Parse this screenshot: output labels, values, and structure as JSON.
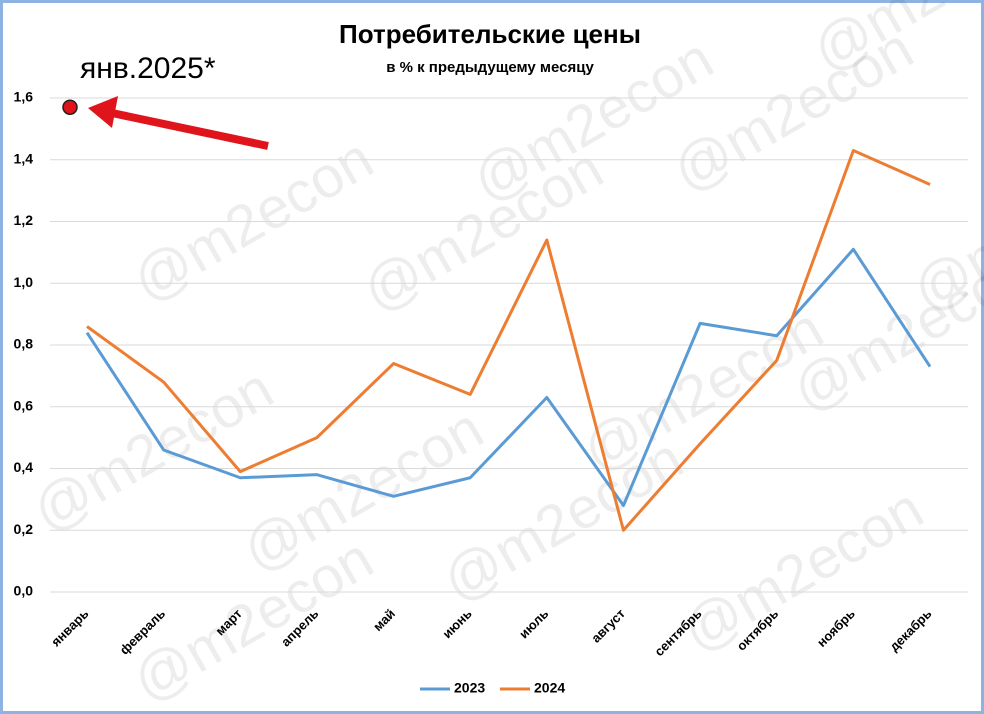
{
  "chart_data": {
    "type": "line",
    "title": "Потребительские цены",
    "subtitle": "в % к предыдущему месяцу",
    "categories": [
      "январь",
      "февраль",
      "март",
      "апрель",
      "май",
      "июнь",
      "июль",
      "август",
      "сентябрь",
      "октябрь",
      "ноябрь",
      "декабрь"
    ],
    "series": [
      {
        "name": "2023",
        "color": "#5b9bd5",
        "values": [
          0.84,
          0.46,
          0.37,
          0.38,
          0.31,
          0.37,
          0.63,
          0.28,
          0.87,
          0.83,
          1.11,
          0.73
        ]
      },
      {
        "name": "2024",
        "color": "#ed7d31",
        "values": [
          0.86,
          0.68,
          0.39,
          0.5,
          0.74,
          0.64,
          1.14,
          0.2,
          0.48,
          0.75,
          1.43,
          1.32
        ]
      }
    ],
    "annotation": {
      "text": "янв.2025*",
      "value": 1.57,
      "color": "#e0141b"
    },
    "watermark": "@m2econ",
    "ylim": [
      0,
      1.6
    ],
    "yticks": [
      {
        "value": 0,
        "label": "0,0"
      },
      {
        "value": 0.2,
        "label": "0,2"
      },
      {
        "value": 0.4,
        "label": "0,4"
      },
      {
        "value": 0.6,
        "label": "0,6"
      },
      {
        "value": 0.8,
        "label": "0,8"
      },
      {
        "value": 1.0,
        "label": "1,0"
      },
      {
        "value": 1.2,
        "label": "1,2"
      },
      {
        "value": 1.4,
        "label": "1,4"
      },
      {
        "value": 1.6,
        "label": "1,6"
      }
    ],
    "grid": true,
    "legend": "bottom"
  }
}
